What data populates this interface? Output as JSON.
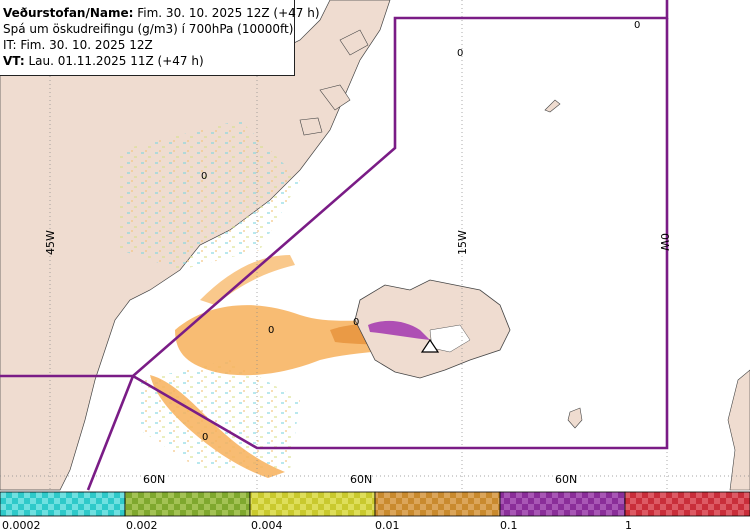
{
  "header": {
    "line1_prefix": "Veðurstofan/Name:",
    "line1_rest": " Fim. 30. 10. 2025 12Z (+47 h)",
    "line2": "Spá um öskudreifingu (g/m3) í 700hPa (10000ft)",
    "line3": "IT: Fim. 30. 10. 2025 12Z",
    "line4_prefix": "VT:",
    "line4_rest": " Lau. 01.11.2025 11Z (+47 h)"
  },
  "grid_labels": {
    "lon_45w": "45W",
    "lon_15w": "15W",
    "lon_0w": "0W",
    "lat_60n_a": "60N",
    "lat_60n_b": "60N",
    "lat_60n_c": "60N"
  },
  "contour_labels": [
    "0",
    "0",
    "0",
    "0",
    "0",
    "0"
  ],
  "legend": {
    "ticks": [
      "0.0002",
      "0.002",
      "0.004",
      "0.01",
      "0.1",
      "1"
    ],
    "colors": [
      "#2ec9c9",
      "#7fa82e",
      "#c9c92e",
      "#c98a2e",
      "#8a2e99",
      "#c92e3a"
    ]
  },
  "colors": {
    "land": "#efdcd0",
    "sea": "#ffffff",
    "fir_boundary": "#7a1c86",
    "ash_low": "#f7b05a",
    "ash_mid": "#e89640",
    "ash_high": "#a63fb0"
  },
  "icons": {
    "volcano": "volcano-triangle-icon"
  }
}
